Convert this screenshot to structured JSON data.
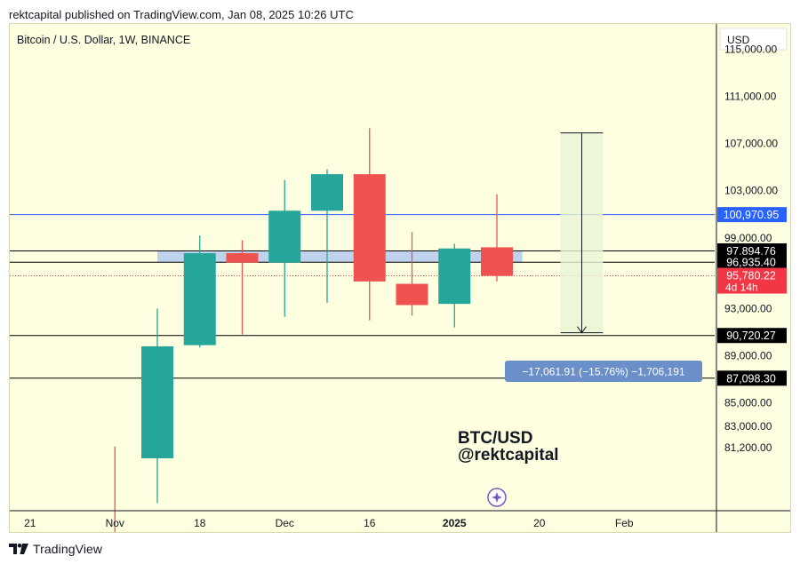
{
  "header": {
    "text": "rektcapital published on TradingView.com, Jan 08, 2025 10:26 UTC"
  },
  "footer": {
    "brand": "TradingView"
  },
  "chart_data": {
    "type": "candlestick",
    "title": "Bitcoin / U.S. Dollar, 1W, BINANCE",
    "currency": "USD",
    "annotation": [
      "BTC/USD",
      "@rektcapital"
    ],
    "y_ticks": [
      115000,
      111000,
      107000,
      103000,
      99000,
      93000,
      89000,
      85000,
      83000,
      81200
    ],
    "y_tick_labels": [
      "115,000.00",
      "111,000.00",
      "107,000.00",
      "103,000.00",
      "99,000.00",
      "93,000.00",
      "89,000.00",
      "85,000.00",
      "83,000.00",
      "81,200.00"
    ],
    "x_ticks": [
      {
        "index": -3,
        "label": "21"
      },
      {
        "index": -1,
        "label": "Nov"
      },
      {
        "index": 1,
        "label": "18"
      },
      {
        "index": 3,
        "label": "Dec"
      },
      {
        "index": 5,
        "label": "16"
      },
      {
        "index": 7,
        "label": "2025"
      },
      {
        "index": 9,
        "label": "20"
      },
      {
        "index": 11,
        "label": "Feb"
      }
    ],
    "candles": [
      {
        "index": -1,
        "open": 69300,
        "high": 81300,
        "low": 69000,
        "close": 69200
      },
      {
        "index": 0,
        "open": 80300,
        "high": 93000,
        "low": 76500,
        "close": 89800
      },
      {
        "index": 1,
        "open": 89900,
        "high": 99200,
        "low": 89700,
        "close": 97700
      },
      {
        "index": 2,
        "open": 97700,
        "high": 98800,
        "low": 90800,
        "close": 96900
      },
      {
        "index": 3,
        "open": 96900,
        "high": 103900,
        "low": 92300,
        "close": 101300
      },
      {
        "index": 4,
        "open": 101300,
        "high": 104800,
        "low": 93500,
        "close": 104400
      },
      {
        "index": 5,
        "open": 104400,
        "high": 108300,
        "low": 92000,
        "close": 95300
      },
      {
        "index": 6,
        "open": 95100,
        "high": 99500,
        "low": 92400,
        "close": 93300
      },
      {
        "index": 7,
        "open": 93400,
        "high": 98500,
        "low": 91400,
        "close": 98100
      },
      {
        "index": 8,
        "open": 98200,
        "high": 102700,
        "low": 95300,
        "close": 95780
      }
    ],
    "horizontal_lines": [
      {
        "value": 100970.95,
        "label": "100,970.95",
        "color": "#2962ff"
      },
      {
        "value": 97894.76,
        "label": "97,894.76",
        "color": "#000000"
      },
      {
        "value": 96935.4,
        "label": "96,935.40",
        "color": "#000000"
      },
      {
        "value": 90720.27,
        "label": "90,720.27",
        "color": "#000000"
      },
      {
        "value": 87098.3,
        "label": "87,098.30",
        "color": "#000000"
      }
    ],
    "last_price": {
      "value": 95780.22,
      "label": "95,780.22",
      "countdown": "4d 14h",
      "color": "#f23645"
    },
    "support_zone": {
      "from": 96935.4,
      "to": 97894.76,
      "start_index": 0.0,
      "end_index": 8.6
    },
    "measure": {
      "start_index": 9.5,
      "end_index": 10.5,
      "top": 107900,
      "bottom": 90950,
      "label": "−17,061.91 (−15.76%) −1,706,191"
    },
    "colors": {
      "up": "#26a69a",
      "down": "#ef5350",
      "background": "#fefee0"
    }
  }
}
